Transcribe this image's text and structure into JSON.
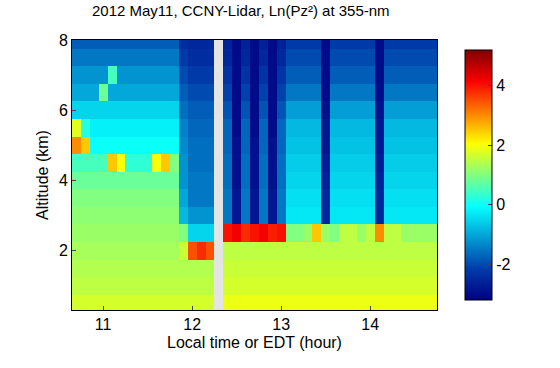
{
  "chart_data": {
    "type": "heatmap",
    "title": "2012 May11, CCNY-Lidar, Ln(Pz²) at 355-nm",
    "x_label": "Local time or EDT (hour)",
    "y_label": "Altitude (km)",
    "xlim": [
      10.65,
      14.75
    ],
    "xticks": [
      11,
      12,
      13,
      14
    ],
    "ylim": [
      0.3,
      8
    ],
    "yticks": [
      2,
      4,
      6,
      8
    ],
    "colorbar": {
      "range": [
        -3.2,
        5.2
      ],
      "ticks": [
        -2,
        0,
        2,
        4
      ]
    },
    "x": [
      10.7,
      10.8,
      10.9,
      11.0,
      11.1,
      11.2,
      11.3,
      11.4,
      11.5,
      11.6,
      11.7,
      11.8,
      11.9,
      12.0,
      12.1,
      12.2,
      12.3,
      12.4,
      12.5,
      12.6,
      12.7,
      12.8,
      12.9,
      13.0,
      13.1,
      13.2,
      13.3,
      13.4,
      13.5,
      13.6,
      13.7,
      13.8,
      13.9,
      14.0,
      14.1,
      14.2,
      14.3,
      14.4,
      14.5,
      14.6,
      14.7
    ],
    "y": [
      0.5,
      1.0,
      1.5,
      2.0,
      2.5,
      3.0,
      3.5,
      4.0,
      4.5,
      5.0,
      5.5,
      6.0,
      6.5,
      7.0,
      7.5,
      8.0
    ],
    "z": [
      [
        1.7,
        1.7,
        1.7,
        1.7,
        1.7,
        1.7,
        1.7,
        1.7,
        1.7,
        1.7,
        1.7,
        1.7,
        1.7,
        1.7,
        1.7,
        1.7,
        null,
        1.9,
        1.9,
        1.9,
        1.9,
        1.9,
        1.9,
        1.9,
        1.9,
        1.9,
        1.9,
        1.9,
        1.9,
        1.9,
        1.9,
        1.9,
        1.9,
        1.9,
        1.9,
        1.9,
        1.9,
        1.9,
        1.9,
        1.9,
        1.9
      ],
      [
        1.5,
        1.5,
        1.5,
        1.5,
        1.5,
        1.5,
        1.5,
        1.5,
        1.5,
        1.5,
        1.5,
        1.5,
        1.5,
        1.5,
        1.5,
        1.5,
        null,
        1.7,
        1.7,
        1.7,
        1.7,
        1.7,
        1.7,
        1.7,
        1.7,
        1.7,
        1.7,
        1.7,
        1.7,
        1.7,
        1.7,
        1.7,
        1.7,
        1.7,
        1.7,
        1.7,
        1.7,
        1.7,
        1.7,
        1.7,
        1.7
      ],
      [
        1.4,
        1.4,
        1.4,
        1.4,
        1.4,
        1.4,
        1.4,
        1.4,
        1.4,
        1.4,
        1.4,
        1.4,
        1.4,
        1.4,
        1.4,
        1.4,
        null,
        1.6,
        1.6,
        1.6,
        1.6,
        1.6,
        1.6,
        1.6,
        1.6,
        1.6,
        1.6,
        1.6,
        1.6,
        1.6,
        1.6,
        1.6,
        1.6,
        1.6,
        1.6,
        1.6,
        1.6,
        1.6,
        1.6,
        1.6,
        1.6
      ],
      [
        1.3,
        1.3,
        1.3,
        1.3,
        1.3,
        1.3,
        1.3,
        1.3,
        1.3,
        1.3,
        1.3,
        1.3,
        1.6,
        3.5,
        3.8,
        3.5,
        null,
        1.5,
        1.5,
        1.5,
        1.5,
        1.5,
        1.5,
        1.5,
        1.5,
        1.5,
        1.5,
        1.5,
        1.5,
        1.5,
        1.5,
        1.5,
        1.5,
        1.5,
        1.5,
        1.5,
        1.5,
        1.5,
        1.5,
        1.5,
        1.5
      ],
      [
        1.2,
        1.2,
        1.2,
        1.2,
        1.2,
        1.2,
        1.2,
        1.2,
        1.2,
        1.2,
        1.2,
        1.2,
        1.0,
        -0.5,
        -0.5,
        -0.5,
        null,
        4.0,
        4.2,
        3.8,
        4.0,
        4.2,
        3.9,
        4.0,
        1.0,
        1.0,
        1.2,
        2.5,
        1.2,
        1.0,
        1.5,
        1.5,
        1.2,
        1.5,
        3.0,
        1.5,
        1.5,
        1.2,
        1.2,
        1.2,
        1.2
      ],
      [
        1.1,
        1.1,
        1.1,
        1.1,
        1.1,
        1.1,
        1.1,
        1.1,
        1.1,
        1.1,
        1.1,
        1.1,
        -0.8,
        -1.2,
        -1.2,
        -1.2,
        null,
        -1.5,
        -2.8,
        -1.5,
        -2.8,
        -1.5,
        -2.8,
        -1.5,
        -0.3,
        -0.3,
        -0.3,
        -0.3,
        -2.5,
        -0.3,
        -0.3,
        -0.3,
        -0.3,
        -0.3,
        -2.5,
        -0.3,
        -0.3,
        -0.3,
        -0.3,
        -0.3,
        -0.3
      ],
      [
        1.0,
        1.0,
        1.0,
        1.0,
        1.0,
        1.0,
        1.0,
        1.0,
        1.0,
        1.0,
        1.0,
        1.0,
        -1.0,
        -1.5,
        -1.5,
        -1.5,
        null,
        -1.5,
        -2.8,
        -1.5,
        -2.8,
        -1.5,
        -2.8,
        -1.5,
        -0.4,
        -0.4,
        -0.4,
        -0.4,
        -2.5,
        -0.4,
        -0.4,
        -0.4,
        -0.4,
        -0.4,
        -2.5,
        -0.4,
        -0.4,
        -0.4,
        -0.4,
        -0.4,
        -0.4
      ],
      [
        0.8,
        0.8,
        0.8,
        0.8,
        0.8,
        0.8,
        0.8,
        0.8,
        0.8,
        0.8,
        0.8,
        0.8,
        -1.2,
        -1.5,
        -1.5,
        -1.5,
        null,
        -1.6,
        -2.9,
        -1.6,
        -2.9,
        -1.6,
        -2.9,
        -1.6,
        -0.5,
        -0.5,
        -0.5,
        -0.5,
        -2.6,
        -0.5,
        -0.5,
        -0.5,
        -0.5,
        -0.5,
        -2.6,
        -0.5,
        -0.5,
        -0.5,
        -0.5,
        -0.5,
        -0.5
      ],
      [
        0.5,
        0.5,
        0.5,
        0.5,
        2.5,
        2.0,
        0.3,
        0.3,
        0.3,
        2.0,
        2.5,
        1.0,
        -1.2,
        -1.6,
        -1.6,
        -1.6,
        null,
        -1.6,
        -2.9,
        -1.6,
        -2.9,
        -1.6,
        -2.9,
        -1.6,
        -0.6,
        -0.6,
        -0.6,
        -0.6,
        -2.7,
        -0.6,
        -0.6,
        -0.6,
        -0.6,
        -0.6,
        -2.7,
        -0.6,
        -0.6,
        -0.6,
        -0.6,
        -0.6,
        -0.6
      ],
      [
        3.0,
        2.5,
        0.0,
        0.0,
        0.0,
        0.0,
        0.0,
        0.0,
        0.0,
        0.0,
        0.0,
        0.0,
        -1.3,
        -1.6,
        -1.6,
        -1.6,
        null,
        -1.7,
        -2.9,
        -1.7,
        -2.9,
        -1.7,
        -2.9,
        -1.7,
        -0.7,
        -0.7,
        -0.7,
        -0.7,
        -2.8,
        -0.7,
        -0.7,
        -0.7,
        -0.7,
        -0.7,
        -2.8,
        -0.7,
        -0.7,
        -0.7,
        -0.7,
        -0.7,
        -0.7
      ],
      [
        1.8,
        0.2,
        -0.2,
        -0.2,
        -0.2,
        -0.2,
        -0.2,
        -0.2,
        -0.2,
        -0.2,
        -0.2,
        -0.2,
        -1.4,
        -1.7,
        -1.7,
        -1.7,
        null,
        -1.7,
        -3.0,
        -1.7,
        -3.0,
        -1.7,
        -3.0,
        -1.7,
        -0.8,
        -0.8,
        -0.8,
        -0.8,
        -2.8,
        -0.8,
        -0.8,
        -0.8,
        -0.8,
        -0.8,
        -2.8,
        -0.8,
        -0.8,
        -0.8,
        -0.8,
        -0.8,
        -0.8
      ],
      [
        -0.5,
        -0.5,
        -0.5,
        -0.5,
        -0.5,
        -0.5,
        -0.5,
        -0.5,
        -0.5,
        -0.5,
        -0.5,
        -0.5,
        -1.6,
        -1.8,
        -1.8,
        -1.8,
        null,
        -1.9,
        -3.0,
        -1.9,
        -3.0,
        -1.9,
        -3.0,
        -1.9,
        -1.1,
        -1.1,
        -1.1,
        -1.1,
        -2.9,
        -1.1,
        -1.1,
        -1.1,
        -1.1,
        -1.1,
        -2.9,
        -1.1,
        -1.1,
        -1.1,
        -1.1,
        -1.1,
        -1.1
      ],
      [
        -1.0,
        -1.0,
        -1.0,
        0.8,
        -1.0,
        -1.0,
        -1.0,
        -1.0,
        -1.0,
        -1.0,
        -1.0,
        -1.0,
        -1.8,
        -2.0,
        -2.0,
        -2.0,
        null,
        -2.1,
        -3.0,
        -2.1,
        -3.0,
        -2.1,
        -3.0,
        -2.1,
        -1.5,
        -1.5,
        -1.5,
        -1.5,
        -3.0,
        -1.5,
        -1.5,
        -1.5,
        -1.5,
        -1.5,
        -3.0,
        -1.5,
        -1.5,
        -1.5,
        -1.5,
        -1.5,
        -1.5
      ],
      [
        -1.2,
        -1.2,
        -1.2,
        -1.2,
        0.5,
        -1.2,
        -1.2,
        -1.2,
        -1.2,
        -1.2,
        -1.2,
        -1.2,
        -2.0,
        -2.2,
        -2.2,
        -2.2,
        null,
        -2.3,
        -3.0,
        -2.3,
        -3.0,
        -2.3,
        -3.0,
        -2.3,
        -1.8,
        -1.8,
        -1.8,
        -1.8,
        -3.0,
        -1.8,
        -1.8,
        -1.8,
        -1.8,
        -1.8,
        -3.0,
        -1.8,
        -1.8,
        -1.8,
        -1.8,
        -1.8,
        -1.8
      ],
      [
        -1.5,
        -1.5,
        -1.5,
        -1.5,
        -1.5,
        -1.5,
        -1.5,
        -1.5,
        -1.5,
        -1.5,
        -1.5,
        -1.5,
        -2.2,
        -2.4,
        -2.4,
        -2.4,
        null,
        -2.5,
        -3.0,
        -2.5,
        -3.0,
        -2.5,
        -3.0,
        -2.5,
        -2.0,
        -2.0,
        -2.0,
        -2.0,
        -3.0,
        -2.0,
        -2.0,
        -2.0,
        -2.0,
        -2.0,
        -3.0,
        -2.0,
        -2.0,
        -2.0,
        -2.0,
        -2.0,
        -2.0
      ],
      [
        -1.8,
        -1.8,
        -1.8,
        -1.8,
        -1.8,
        -1.8,
        -1.8,
        -1.8,
        -1.8,
        -1.8,
        -1.8,
        -1.8,
        -2.4,
        -2.5,
        -2.5,
        -2.5,
        null,
        -2.6,
        -3.0,
        -2.6,
        -3.0,
        -2.6,
        -3.0,
        -2.6,
        -2.2,
        -2.2,
        -2.2,
        -2.2,
        -3.0,
        -2.2,
        -2.2,
        -2.2,
        -2.2,
        -2.2,
        -3.0,
        -2.2,
        -2.2,
        -2.2,
        -2.2,
        -2.2,
        -2.2
      ]
    ]
  }
}
